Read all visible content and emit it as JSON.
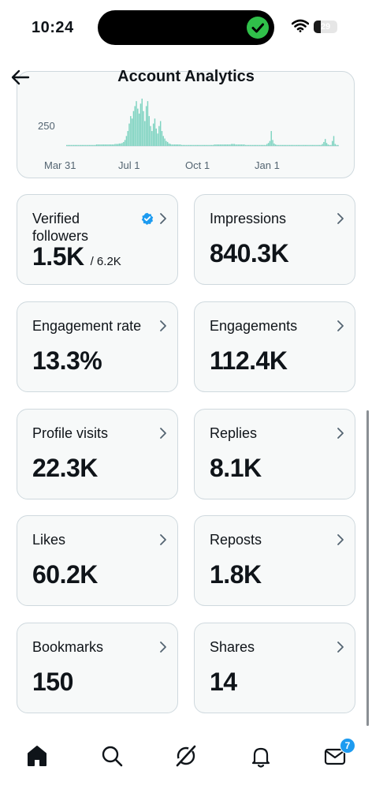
{
  "status_bar": {
    "time": "10:24",
    "battery_level": "29",
    "battery_percent": 29
  },
  "header": {
    "title": "Account Analytics",
    "back_icon": "arrow-left-icon"
  },
  "chart_data": {
    "type": "bar",
    "ytick_labels": [
      "250"
    ],
    "xtick_labels": [
      "Mar 31",
      "Jul 1",
      "Oct 1",
      "Jan 1"
    ],
    "bar_color": "#7dd3c0",
    "values": [
      2,
      2,
      2,
      2,
      2,
      2,
      2,
      2,
      2,
      2,
      2,
      2,
      2,
      2,
      2,
      2,
      2,
      2,
      2,
      2,
      2,
      3,
      3,
      3,
      3,
      3,
      3,
      3,
      3,
      3,
      3,
      3,
      3,
      3,
      4,
      4,
      4,
      5,
      5,
      6,
      8,
      12,
      20,
      30,
      45,
      60,
      55,
      70,
      80,
      90,
      75,
      65,
      85,
      95,
      70,
      50,
      80,
      90,
      60,
      40,
      30,
      45,
      55,
      35,
      25,
      40,
      50,
      30,
      20,
      15,
      10,
      8,
      5,
      4,
      3,
      3,
      3,
      3,
      3,
      3,
      3,
      2,
      2,
      2,
      2,
      2,
      2,
      2,
      2,
      2,
      2,
      2,
      2,
      2,
      2,
      2,
      2,
      2,
      2,
      2,
      2,
      2,
      2,
      2,
      3,
      3,
      3,
      3,
      3,
      3,
      3,
      3,
      3,
      3,
      3,
      3,
      4,
      4,
      4,
      3,
      3,
      3,
      3,
      3,
      3,
      3,
      2,
      2,
      2,
      2,
      2,
      2,
      2,
      2,
      2,
      2,
      2,
      2,
      2,
      2,
      2,
      4,
      6,
      10,
      30,
      12,
      5,
      3,
      2,
      2,
      2,
      2,
      2,
      2,
      2,
      2,
      2,
      2,
      2,
      2,
      2,
      2,
      2,
      2,
      2,
      2,
      2,
      2,
      2,
      2,
      2,
      2,
      2,
      2,
      2,
      2,
      2,
      2,
      2,
      2,
      4,
      8,
      14,
      6,
      3,
      2,
      2,
      10,
      20,
      4,
      2,
      2
    ]
  },
  "cards": [
    {
      "label": "Verified\nfollowers",
      "value": "1.5K",
      "sub": "/ 6.2K",
      "verified": true
    },
    {
      "label": "Impressions",
      "value": "840.3K"
    },
    {
      "label": "Engagement rate",
      "value": "13.3%"
    },
    {
      "label": "Engagements",
      "value": "112.4K"
    },
    {
      "label": "Profile visits",
      "value": "22.3K"
    },
    {
      "label": "Replies",
      "value": "8.1K"
    },
    {
      "label": "Likes",
      "value": "60.2K"
    },
    {
      "label": "Reposts",
      "value": "1.8K"
    },
    {
      "label": "Bookmarks",
      "value": "150"
    },
    {
      "label": "Shares",
      "value": "14"
    }
  ],
  "bottom_nav": {
    "items": [
      "home-icon",
      "search-icon",
      "grok-icon",
      "notifications-icon",
      "messages-icon"
    ],
    "messages_badge": "7"
  }
}
